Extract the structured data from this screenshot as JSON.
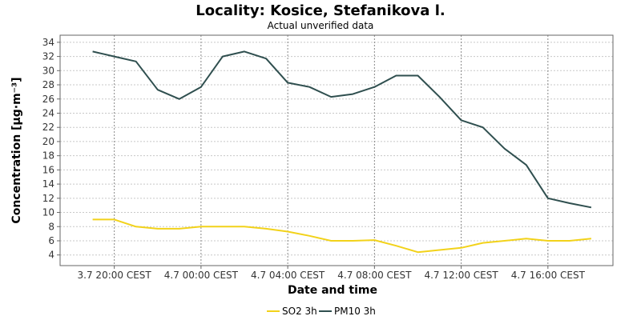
{
  "chart_data": {
    "type": "line",
    "title": "Locality: Kosice, Stefanikova l.",
    "subtitle": "Actual unverified data",
    "xlabel": "Date and time",
    "ylabel": "Concentration [µg·m⁻³]",
    "ylim": [
      2.5,
      35
    ],
    "yticks": [
      4,
      6,
      8,
      10,
      12,
      14,
      16,
      18,
      20,
      22,
      24,
      26,
      28,
      30,
      32,
      34
    ],
    "x_tick_labels": [
      "3.7 20:00 CEST",
      "4.7 00:00 CEST",
      "4.7 04:00 CEST",
      "4.7 08:00 CEST",
      "4.7 12:00 CEST",
      "4.7 16:00 CEST"
    ],
    "x_tick_hours": [
      20,
      24,
      28,
      32,
      36,
      40
    ],
    "x_hours": [
      19,
      20,
      21,
      22,
      23,
      24,
      25,
      26,
      27,
      28,
      29,
      30,
      31,
      32,
      33,
      34,
      35,
      36,
      37,
      38,
      39,
      40,
      41,
      42
    ],
    "xlim": [
      17.5,
      43
    ],
    "grid": true,
    "legend_position": "bottom-center",
    "series": [
      {
        "name": "SO2 3h",
        "color": "#f2d21a",
        "values": [
          9.0,
          9.0,
          8.0,
          7.7,
          7.7,
          8.0,
          8.0,
          8.0,
          7.7,
          7.3,
          6.7,
          6.0,
          6.0,
          6.1,
          5.3,
          4.4,
          4.7,
          5.0,
          5.7,
          6.0,
          6.3,
          6.0,
          6.0,
          6.3
        ]
      },
      {
        "name": "PM10 3h",
        "color": "#2f4f4f",
        "values": [
          32.7,
          32.0,
          31.3,
          27.3,
          26.0,
          27.7,
          32.0,
          32.7,
          31.7,
          28.3,
          27.7,
          26.3,
          26.7,
          27.7,
          29.3,
          29.3,
          26.3,
          23.0,
          22.0,
          19.0,
          16.7,
          12.0,
          11.3,
          10.7
        ]
      }
    ]
  }
}
